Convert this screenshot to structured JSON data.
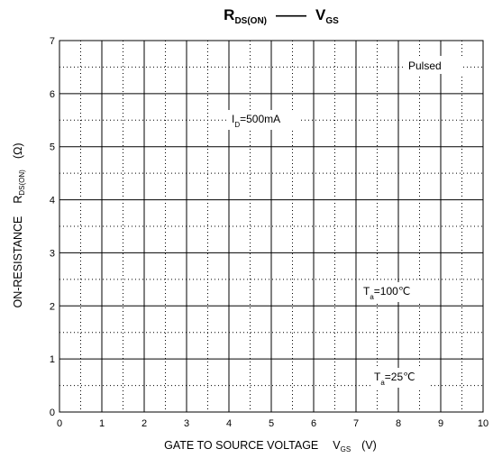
{
  "chart_data": {
    "type": "line",
    "title": {
      "left_symbol": "R",
      "left_subscript": "DS(ON)",
      "separator": "——",
      "right_symbol": "V",
      "right_subscript": "GS"
    },
    "xlabel": {
      "text": "GATE TO SOURCE VOLTAGE",
      "symbol": "V",
      "subscript": "GS",
      "unit": "(V)"
    },
    "ylabel": {
      "text": "ON-RESISTANCE",
      "symbol": "R",
      "subscript": "DS(ON)",
      "unit": "(Ω)"
    },
    "xlim": [
      0,
      10
    ],
    "ylim": [
      0,
      7
    ],
    "x_ticks": [
      "0",
      "1",
      "2",
      "3",
      "4",
      "5",
      "6",
      "7",
      "8",
      "9",
      "10"
    ],
    "y_ticks": [
      "0",
      "1",
      "2",
      "3",
      "4",
      "5",
      "6",
      "7"
    ],
    "grid": true,
    "minor_grid": "dotted",
    "series": [],
    "annotations": {
      "pulsed": "Pulsed",
      "id_symbol": "I",
      "id_subscript": "D",
      "id_value": "=500mA",
      "ta100_symbol": "T",
      "ta100_subscript": "a",
      "ta100_value": "=100℃",
      "ta25_symbol": "T",
      "ta25_subscript": "a",
      "ta25_value": "=25℃"
    }
  }
}
